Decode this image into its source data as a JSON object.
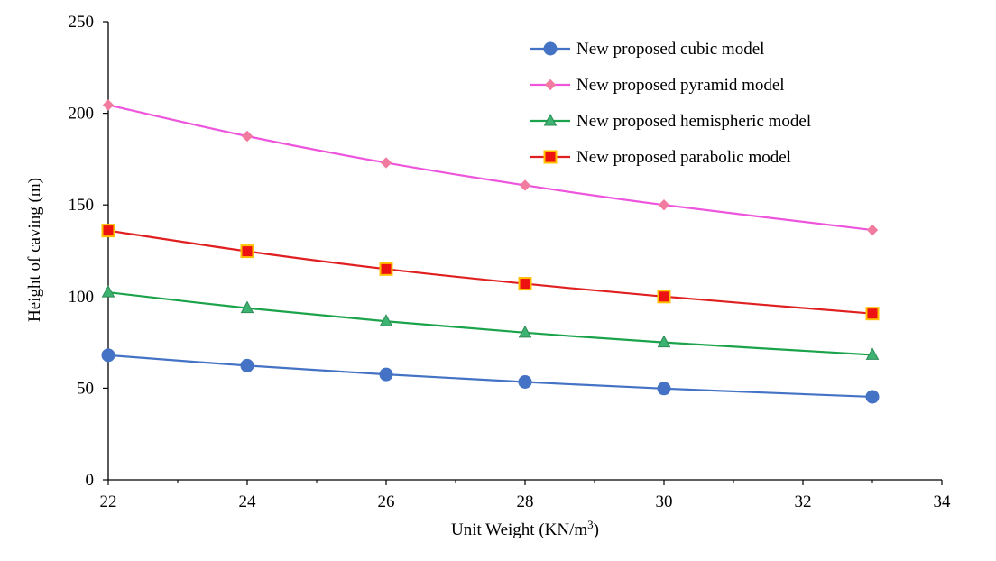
{
  "chart_data": {
    "type": "line",
    "title": "",
    "xlabel": "Unit Weight (KN/m",
    "xlabel_sup": "3",
    "xlabel_end": ")",
    "ylabel": "Height of caving (m)",
    "xlim": [
      22,
      34
    ],
    "ylim": [
      0,
      250
    ],
    "x_ticks": [
      22,
      24,
      26,
      28,
      30,
      32,
      34
    ],
    "y_ticks": [
      0,
      50,
      100,
      150,
      200,
      250
    ],
    "grid": false,
    "legend_position": "top-right",
    "x": [
      22,
      24,
      26,
      28,
      30,
      33
    ],
    "series": [
      {
        "name": "New proposed cubic model",
        "color": "#4472c4",
        "marker": "circle",
        "marker_fill": "#4472c4",
        "marker_stroke": "#4472c4",
        "values": [
          68,
          62.3,
          57.5,
          53.4,
          49.8,
          45.3
        ]
      },
      {
        "name": "New proposed pyramid model",
        "color": "#ee55dd",
        "marker": "diamond",
        "marker_fill": "#f27ba0",
        "marker_stroke": "#f27ba0",
        "values": [
          204.5,
          187.5,
          173,
          160.7,
          150,
          136.3
        ]
      },
      {
        "name": "New proposed hemispheric model",
        "color": "#1aa34a",
        "marker": "triangle",
        "marker_fill": "#3cb371",
        "marker_stroke": "#2e8b57",
        "values": [
          102.3,
          93.7,
          86.5,
          80.3,
          75,
          68.2
        ]
      },
      {
        "name": "New proposed parabolic model",
        "color": "#e02020",
        "marker": "square",
        "marker_fill": "#ee1111",
        "marker_stroke": "#ffc000",
        "values": [
          136,
          124.7,
          115,
          107,
          100,
          90.7
        ]
      }
    ]
  }
}
